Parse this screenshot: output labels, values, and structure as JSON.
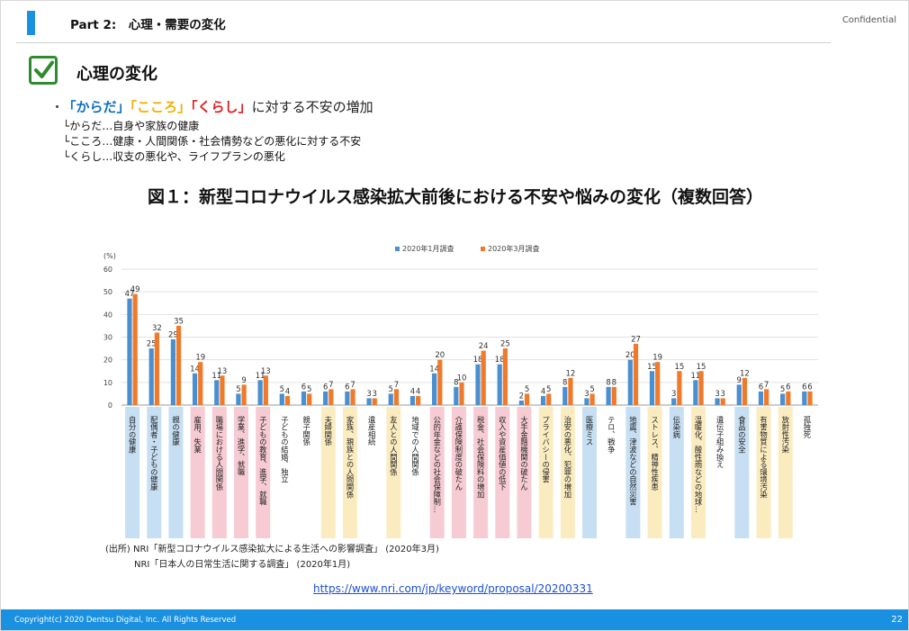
{
  "header": {
    "title": "Part 2:　心理・需要の変化",
    "confidential": "Confidential"
  },
  "section": {
    "title": "心理の変化"
  },
  "bullet": {
    "mark": "・",
    "k1": "「からだ」",
    "k2": "「こころ」",
    "k3": "「くらし」",
    "rest": "に対する不安の増加"
  },
  "subs": [
    "└からだ…自身や家族の健康",
    "└こころ…健康・人間関係・社会情勢などの悪化に対する不安",
    "└くらし…収支の悪化や、ライフプランの悪化"
  ],
  "figure_title": "図１：新型コロナウイルス感染拡大前後における不安や悩みの変化（複数回答）",
  "chart_data": {
    "type": "bar",
    "yunit": "(%)",
    "ylim": [
      0,
      60
    ],
    "yticks": [
      0,
      10,
      20,
      30,
      40,
      50,
      60
    ],
    "grid": true,
    "legend_position": "top",
    "categories": [
      "自分の健康",
      "配偶者・子どもの健康",
      "親の健康",
      "雇用、失業",
      "職場における人間関係",
      "学業、進学、就職",
      "子どもの教育、進学、就職",
      "子どもの結婚、独立",
      "親子関係",
      "夫婦関係",
      "家族、親族との人間関係",
      "遺産相続",
      "友人との人間関係",
      "地域での人間関係",
      "公的年金などの社会保障制…",
      "介護保険制度の破たん",
      "税金、社会保険料の増加",
      "収入や資産価値の低下",
      "大手金融機関の破たん",
      "プライバシーの侵害",
      "治安の悪化、犯罪の増加",
      "医療ミス",
      "テロ、戦争",
      "地震、津波などの自然災害",
      "ストレス、精神性疾患",
      "伝染病",
      "温暖化、酸性雨などの地球…",
      "遺伝子組み換え",
      "食品の安全",
      "有害物質による環境汚染",
      "放射性汚染",
      "孤独死"
    ],
    "band_colors": [
      "#c6dff2",
      "#c6dff2",
      "#c6dff2",
      "#f7cbd3",
      "#f7cbd3",
      "#f7cbd3",
      "#f7cbd3",
      "",
      "",
      "#fbecc0",
      "#fbecc0",
      "",
      "#fbecc0",
      "",
      "#f7cbd3",
      "#f7cbd3",
      "#f7cbd3",
      "#f7cbd3",
      "#f7cbd3",
      "#fbecc0",
      "#fbecc0",
      "#c6dff2",
      "",
      "#c6dff2",
      "#fbecc0",
      "#c6dff2",
      "#fbecc0",
      "",
      "#c6dff2",
      "#fbecc0",
      "#fbecc0",
      ""
    ],
    "series": [
      {
        "name": "2020年1月調査",
        "color": "#4a8fd0",
        "values": [
          47,
          25,
          29,
          14,
          11,
          5,
          11,
          5,
          6,
          6,
          6,
          3,
          5,
          4,
          14,
          8,
          18,
          18,
          2,
          4,
          8,
          3,
          8,
          20,
          15,
          3,
          11,
          3,
          9,
          6,
          5,
          6
        ]
      },
      {
        "name": "2020年3月調査",
        "color": "#f07a2a",
        "values": [
          49,
          32,
          35,
          19,
          13,
          9,
          13,
          4,
          5,
          7,
          7,
          3,
          7,
          4,
          20,
          10,
          24,
          25,
          5,
          5,
          12,
          5,
          8,
          27,
          19,
          15,
          15,
          3,
          12,
          7,
          6,
          6
        ]
      }
    ]
  },
  "sources": {
    "line1": "(出所)  NRI「新型コロナウイルス感染拡大による生活への影響調査」 (2020年3月)",
    "line2": "NRI「日本人の日常生活に関する調査」 (2020年1月)"
  },
  "url": "https://www.nri.com/jp/keyword/proposal/20200331",
  "footer": {
    "copyright": "Copyright(c) 2020 Dentsu Digital, Inc. All Rights Reserved",
    "page": "22"
  }
}
